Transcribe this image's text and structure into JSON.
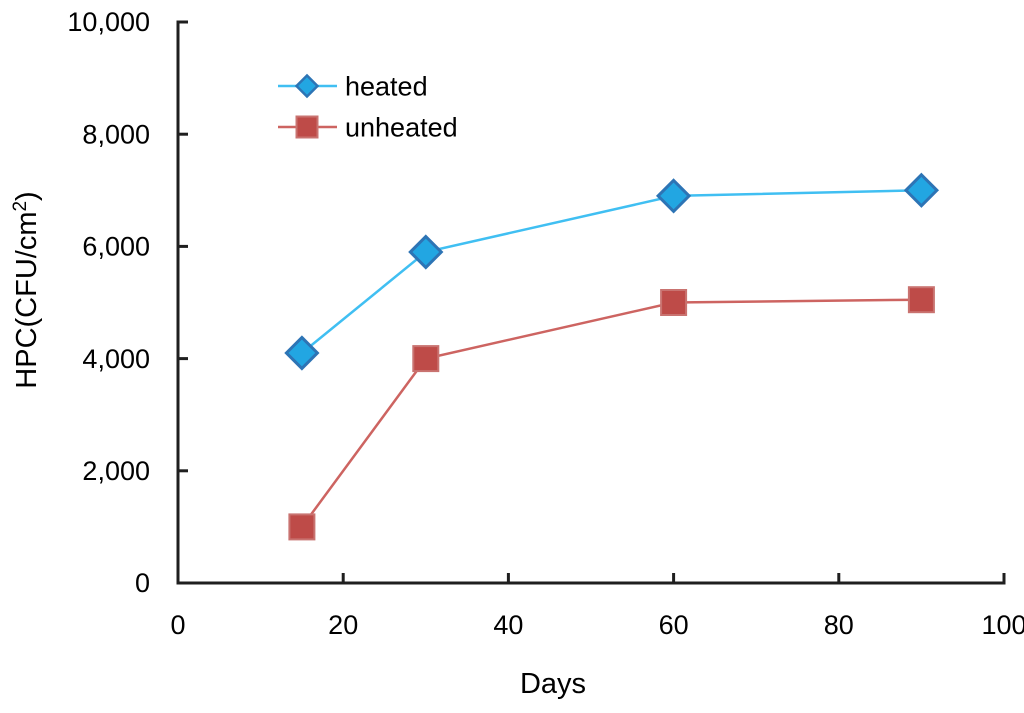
{
  "chart_data": {
    "type": "line",
    "title": "",
    "xlabel": "Days",
    "ylabel": "HPC(CFU/cm²)",
    "xlim": [
      0,
      100
    ],
    "ylim": [
      0,
      10000
    ],
    "xticks": [
      0,
      20,
      40,
      60,
      80,
      100
    ],
    "yticks": [
      0,
      2000,
      4000,
      6000,
      8000,
      10000
    ],
    "ytick_labels": [
      "0",
      "2,000",
      "4,000",
      "6,000",
      "8,000",
      "10,000"
    ],
    "grid": false,
    "legend_position": "top-left-inside",
    "x": [
      15,
      30,
      60,
      90
    ],
    "series": [
      {
        "name": "heated",
        "marker": "diamond",
        "values": [
          4100,
          5900,
          6900,
          7000
        ],
        "line_color": "#40BFF2",
        "marker_fill": "#22A6E2",
        "marker_stroke": "#2D74B5"
      },
      {
        "name": "unheated",
        "marker": "square",
        "values": [
          1000,
          4000,
          5000,
          5050
        ],
        "line_color": "#CD6461",
        "marker_fill": "#BE4B48",
        "marker_stroke": "#C97370"
      }
    ],
    "colors": {
      "axis": "#1F1F1F",
      "text": "#000000",
      "background": "#FFFFFF"
    }
  }
}
